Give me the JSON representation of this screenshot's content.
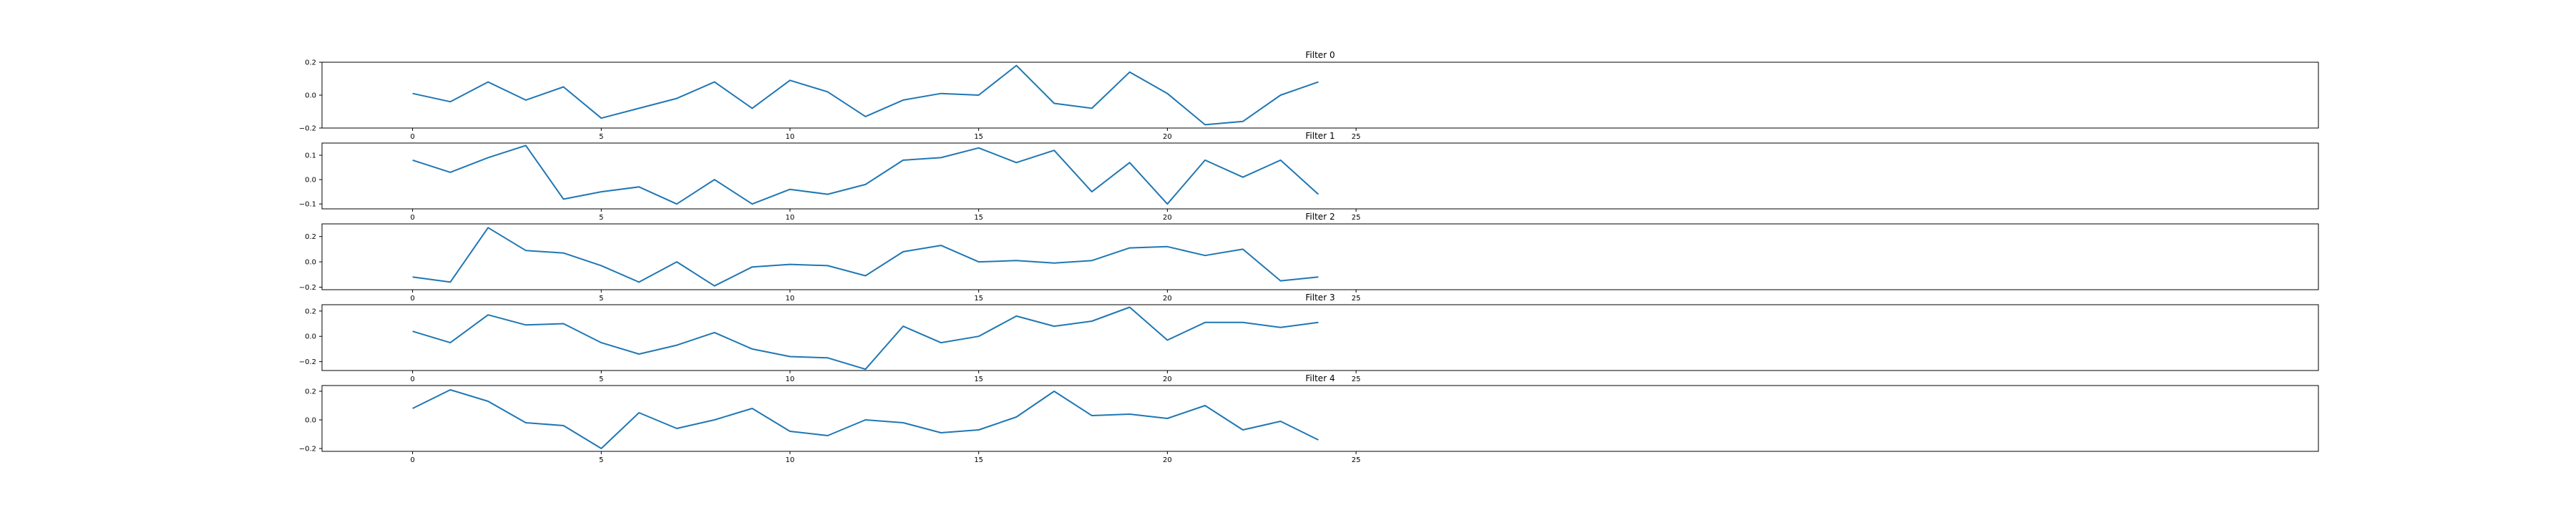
{
  "chart_data": [
    {
      "type": "line",
      "title": "Filter 0",
      "x": [
        0,
        1,
        2,
        3,
        4,
        5,
        6,
        7,
        8,
        9,
        10,
        11,
        12,
        13,
        14,
        15,
        16,
        17,
        18,
        19,
        20,
        21,
        22,
        23,
        24
      ],
      "series": [
        {
          "values": [
            0.01,
            -0.04,
            0.08,
            -0.03,
            0.05,
            -0.14,
            -0.08,
            -0.02,
            0.08,
            -0.08,
            0.09,
            0.02,
            -0.13,
            -0.03,
            0.01,
            0.0,
            0.18,
            -0.05,
            -0.08,
            0.14,
            0.01,
            -0.18,
            -0.16,
            0.0,
            0.08
          ]
        }
      ],
      "xlim": [
        -2.4,
        50.5
      ],
      "ylim": [
        -0.2,
        0.2
      ],
      "xticks": [
        0,
        5,
        10,
        15,
        20,
        25
      ],
      "xtick_labels": [
        "0",
        "5",
        "10",
        "15",
        "20",
        "25"
      ],
      "yticks": [
        -0.2,
        0.0,
        0.2
      ],
      "ytick_labels": [
        "−0.2",
        "0.0",
        "0.2"
      ],
      "color": "#1f77b4"
    },
    {
      "type": "line",
      "title": "Filter 1",
      "x": [
        0,
        1,
        2,
        3,
        4,
        5,
        6,
        7,
        8,
        9,
        10,
        11,
        12,
        13,
        14,
        15,
        16,
        17,
        18,
        19,
        20,
        21,
        22,
        23,
        24
      ],
      "series": [
        {
          "values": [
            0.08,
            0.03,
            0.09,
            0.14,
            -0.08,
            -0.05,
            -0.03,
            -0.1,
            0.0,
            -0.1,
            -0.04,
            -0.06,
            -0.02,
            0.08,
            0.09,
            0.13,
            0.07,
            0.12,
            -0.05,
            0.07,
            -0.1,
            0.08,
            0.01,
            0.08,
            -0.06
          ]
        }
      ],
      "xlim": [
        -2.4,
        50.5
      ],
      "ylim": [
        -0.12,
        0.15
      ],
      "xticks": [
        0,
        5,
        10,
        15,
        20,
        25
      ],
      "xtick_labels": [
        "0",
        "5",
        "10",
        "15",
        "20",
        "25"
      ],
      "yticks": [
        -0.1,
        0.0,
        0.1
      ],
      "ytick_labels": [
        "−0.1",
        "0.0",
        "0.1"
      ],
      "color": "#1f77b4"
    },
    {
      "type": "line",
      "title": "Filter 2",
      "x": [
        0,
        1,
        2,
        3,
        4,
        5,
        6,
        7,
        8,
        9,
        10,
        11,
        12,
        13,
        14,
        15,
        16,
        17,
        18,
        19,
        20,
        21,
        22,
        23,
        24
      ],
      "series": [
        {
          "values": [
            -0.12,
            -0.16,
            0.27,
            0.09,
            0.07,
            -0.03,
            -0.16,
            0.0,
            -0.19,
            -0.04,
            -0.02,
            -0.03,
            -0.11,
            0.08,
            0.13,
            0.0,
            0.01,
            -0.01,
            0.01,
            0.11,
            0.12,
            0.05,
            0.1,
            -0.15,
            -0.12
          ]
        }
      ],
      "xlim": [
        -2.4,
        50.5
      ],
      "ylim": [
        -0.22,
        0.3
      ],
      "xticks": [
        0,
        5,
        10,
        15,
        20,
        25
      ],
      "xtick_labels": [
        "0",
        "5",
        "10",
        "15",
        "20",
        "25"
      ],
      "yticks": [
        -0.2,
        0.0,
        0.2
      ],
      "ytick_labels": [
        "−0.2",
        "0.0",
        "0.2"
      ],
      "color": "#1f77b4"
    },
    {
      "type": "line",
      "title": "Filter 3",
      "x": [
        0,
        1,
        2,
        3,
        4,
        5,
        6,
        7,
        8,
        9,
        10,
        11,
        12,
        13,
        14,
        15,
        16,
        17,
        18,
        19,
        20,
        21,
        22,
        23,
        24
      ],
      "series": [
        {
          "values": [
            0.04,
            -0.05,
            0.17,
            0.09,
            0.1,
            -0.05,
            -0.14,
            -0.07,
            0.03,
            -0.1,
            -0.16,
            -0.17,
            -0.26,
            0.08,
            -0.05,
            0.0,
            0.16,
            0.08,
            0.12,
            0.23,
            -0.03,
            0.11,
            0.11,
            0.07,
            0.11
          ]
        }
      ],
      "xlim": [
        -2.4,
        50.5
      ],
      "ylim": [
        -0.27,
        0.25
      ],
      "xticks": [
        0,
        5,
        10,
        15,
        20,
        25
      ],
      "xtick_labels": [
        "0",
        "5",
        "10",
        "15",
        "20",
        "25"
      ],
      "yticks": [
        -0.2,
        0.0,
        0.2
      ],
      "ytick_labels": [
        "−0.2",
        "0.0",
        "0.2"
      ],
      "color": "#1f77b4"
    },
    {
      "type": "line",
      "title": "Filter 4",
      "x": [
        0,
        1,
        2,
        3,
        4,
        5,
        6,
        7,
        8,
        9,
        10,
        11,
        12,
        13,
        14,
        15,
        16,
        17,
        18,
        19,
        20,
        21,
        22,
        23,
        24
      ],
      "series": [
        {
          "values": [
            0.08,
            0.21,
            0.13,
            -0.02,
            -0.04,
            -0.2,
            0.05,
            -0.06,
            0.0,
            0.08,
            -0.08,
            -0.11,
            0.0,
            -0.02,
            -0.09,
            -0.07,
            0.02,
            0.2,
            0.03,
            0.04,
            0.01,
            0.1,
            -0.07,
            -0.01,
            -0.14
          ]
        }
      ],
      "xlim": [
        -2.4,
        50.5
      ],
      "ylim": [
        -0.22,
        0.24
      ],
      "xticks": [
        0,
        5,
        10,
        15,
        20,
        25
      ],
      "xtick_labels": [
        "0",
        "5",
        "10",
        "15",
        "20",
        "25"
      ],
      "yticks": [
        -0.2,
        0.0,
        0.2
      ],
      "ytick_labels": [
        "−0.2",
        "0.0",
        "0.2"
      ],
      "color": "#1f77b4"
    }
  ]
}
